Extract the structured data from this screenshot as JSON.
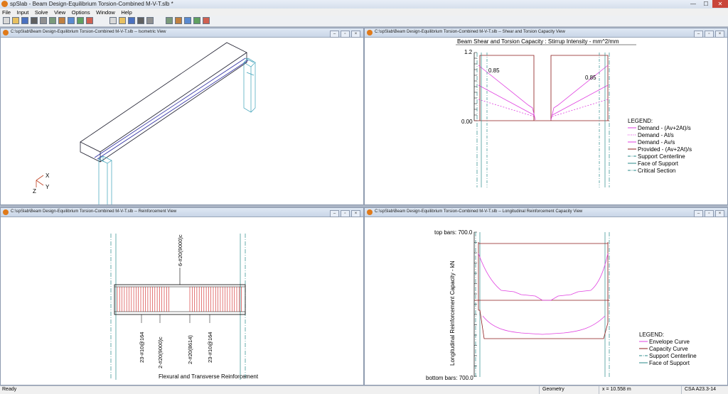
{
  "app": {
    "title": "spSlab - Beam Design-Equilibrium Torsion-Combined M-V-T.slb *"
  },
  "window_controls": {
    "minimize": "—",
    "maximize": "☐",
    "close": "✕"
  },
  "menu": [
    "File",
    "Input",
    "Solve",
    "View",
    "Options",
    "Window",
    "Help"
  ],
  "toolbar_icons": [
    "new-icon",
    "open-icon",
    "save-icon",
    "print-icon",
    "print-preview-icon",
    "copy-icon",
    "paste-icon",
    "report-icon",
    "export-icon",
    "solve-icon",
    "delete-icon",
    "view-front-icon",
    "view-top-icon",
    "view-side-icon",
    "view-iso-icon",
    "zoom-in-icon",
    "zoom-out-icon",
    "zoom-window-icon",
    "zoom-extent-icon",
    "pan-icon"
  ],
  "panes": {
    "iso": {
      "title": "C:\\spSlab\\Beam Design-Equilibrium Torsion-Combined M-V-T.slb -- Isometric View",
      "axes": {
        "x": "X",
        "y": "Y",
        "z": "Z"
      }
    },
    "shear": {
      "title": "C:\\spSlab\\Beam Design-Equilibrium Torsion-Combined M-V-T.slb -- Shear and Torsion Capacity View",
      "chart_title": "Beam Shear and Torsion Capacity : Stirrup Intensity - mm^2/mm",
      "ytick_top": "1.2",
      "ytick_zero": "0.00",
      "label_left": "0.85",
      "label_right": "0.85",
      "legend_title": "LEGEND:",
      "legend": [
        {
          "name": "Demand - (Av+2At)/s",
          "color": "#e040e0",
          "style": "solid"
        },
        {
          "name": "Demand - At/s",
          "color": "#e040e0",
          "style": "dotted"
        },
        {
          "name": "Demand - Av/s",
          "color": "#e040e0",
          "style": "solid"
        },
        {
          "name": "Provided - (Av+2At)/s",
          "color": "#8b1a1a",
          "style": "solid"
        },
        {
          "name": "Support Centerline",
          "color": "#2a8a8a",
          "style": "dashdot"
        },
        {
          "name": "Face of Support",
          "color": "#2a8a8a",
          "style": "solid"
        },
        {
          "name": "Critical Section",
          "color": "#2a8a8a",
          "style": "dashdot"
        }
      ]
    },
    "reinf": {
      "title": "C:\\spSlab\\Beam Design-Equilibrium Torsion-Combined M-V-T.slb -- Reinforcement View",
      "top_bar_label": "6-#20(9000)c",
      "bottom_labels": [
        "23-#10@164",
        "2-#20(9000)c",
        "2-#20(8614)",
        "23-#10@164"
      ],
      "caption": "Flexural and Transverse Reinforcement"
    },
    "long": {
      "title": "C:\\spSlab\\Beam Design-Equilibrium Torsion-Combined M-V-T.slb -- Longitudinal Reinforcement Capacity View",
      "top_label": "top bars: 700.0",
      "bottom_label": "bottom bars: 700.0",
      "ylabel": "Longitudinal Reinforcement Capacity - kN",
      "legend_title": "LEGEND:",
      "legend": [
        {
          "name": "Envelope Curve",
          "color": "#e040e0",
          "style": "solid"
        },
        {
          "name": "Capacity Curve",
          "color": "#8b1a1a",
          "style": "solid"
        },
        {
          "name": "Support Centerline",
          "color": "#2a8a8a",
          "style": "dashdot"
        },
        {
          "name": "Face of Support",
          "color": "#2a8a8a",
          "style": "solid"
        }
      ]
    }
  },
  "status": {
    "left": "Ready",
    "mode": "Geometry",
    "coord": "x = 10.558 m",
    "code": "CSA A23.3-14"
  }
}
